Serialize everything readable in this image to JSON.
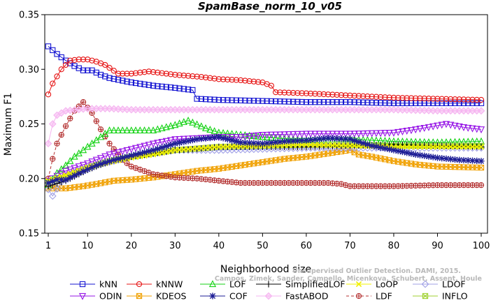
{
  "chart_data": {
    "type": "line",
    "title": "SpamBase_norm_10_v05",
    "xlabel": "Neighborhood size",
    "ylabel": "Maximum F1",
    "xlim": [
      1,
      100
    ],
    "ylim": [
      0.15,
      0.35
    ],
    "xticks": [
      1,
      10,
      20,
      30,
      40,
      50,
      60,
      70,
      80,
      90,
      100
    ],
    "yticks": [
      "0.15",
      "0.20",
      "0.25",
      "0.30",
      "0.35"
    ],
    "grid": false,
    "legend_position": "bottom",
    "watermark": [
      "Unsupervised Outlier Detection. DAMI, 2015.",
      "Campos, Zimek, Sander, Campello, Micenkova, Schubert, Assent, Houle"
    ],
    "series": [
      {
        "name": "kNN",
        "color": "#1414d2",
        "marker": "square",
        "dashed": false,
        "points": [
          [
            1,
            0.321
          ],
          [
            3,
            0.314
          ],
          [
            5,
            0.308
          ],
          [
            7,
            0.303
          ],
          [
            9,
            0.299
          ],
          [
            11,
            0.299
          ],
          [
            13,
            0.295
          ],
          [
            15,
            0.292
          ],
          [
            20,
            0.288
          ],
          [
            25,
            0.285
          ],
          [
            30,
            0.283
          ],
          [
            34,
            0.281
          ],
          [
            35,
            0.273
          ],
          [
            40,
            0.272
          ],
          [
            50,
            0.271
          ],
          [
            60,
            0.27
          ],
          [
            70,
            0.27
          ],
          [
            80,
            0.269
          ],
          [
            90,
            0.269
          ],
          [
            100,
            0.269
          ]
        ]
      },
      {
        "name": "kNNW",
        "color": "#e61414",
        "marker": "circle",
        "dashed": false,
        "points": [
          [
            1,
            0.277
          ],
          [
            2,
            0.287
          ],
          [
            4,
            0.3
          ],
          [
            6,
            0.308
          ],
          [
            8,
            0.309
          ],
          [
            10,
            0.309
          ],
          [
            12,
            0.307
          ],
          [
            14,
            0.304
          ],
          [
            17,
            0.296
          ],
          [
            20,
            0.296
          ],
          [
            24,
            0.298
          ],
          [
            30,
            0.295
          ],
          [
            36,
            0.293
          ],
          [
            40,
            0.291
          ],
          [
            45,
            0.29
          ],
          [
            50,
            0.288
          ],
          [
            52,
            0.285
          ],
          [
            53,
            0.279
          ],
          [
            60,
            0.278
          ],
          [
            70,
            0.276
          ],
          [
            80,
            0.274
          ],
          [
            90,
            0.273
          ],
          [
            100,
            0.272
          ]
        ]
      },
      {
        "name": "LOF",
        "color": "#14d214",
        "marker": "triangle-up",
        "dashed": false,
        "points": [
          [
            1,
            0.194
          ],
          [
            3,
            0.205
          ],
          [
            5,
            0.212
          ],
          [
            7,
            0.22
          ],
          [
            9,
            0.226
          ],
          [
            11,
            0.232
          ],
          [
            13,
            0.238
          ],
          [
            15,
            0.244
          ],
          [
            20,
            0.244
          ],
          [
            25,
            0.244
          ],
          [
            30,
            0.249
          ],
          [
            33,
            0.253
          ],
          [
            37,
            0.246
          ],
          [
            40,
            0.242
          ],
          [
            45,
            0.24
          ],
          [
            50,
            0.238
          ],
          [
            60,
            0.235
          ],
          [
            70,
            0.236
          ],
          [
            80,
            0.234
          ],
          [
            90,
            0.233
          ],
          [
            100,
            0.234
          ]
        ]
      },
      {
        "name": "SimplifiedLOF",
        "color": "#000000",
        "marker": "plus",
        "dashed": false,
        "points": [
          [
            1,
            0.193
          ],
          [
            5,
            0.198
          ],
          [
            10,
            0.208
          ],
          [
            15,
            0.216
          ],
          [
            20,
            0.22
          ],
          [
            25,
            0.223
          ],
          [
            30,
            0.226
          ],
          [
            35,
            0.227
          ],
          [
            40,
            0.229
          ],
          [
            50,
            0.229
          ],
          [
            60,
            0.229
          ],
          [
            70,
            0.23
          ],
          [
            80,
            0.231
          ],
          [
            90,
            0.23
          ],
          [
            100,
            0.229
          ]
        ]
      },
      {
        "name": "LoOP",
        "color": "#f0f000",
        "marker": "cross",
        "dashed": false,
        "points": [
          [
            1,
            0.198
          ],
          [
            5,
            0.203
          ],
          [
            10,
            0.21
          ],
          [
            15,
            0.215
          ],
          [
            20,
            0.219
          ],
          [
            25,
            0.222
          ],
          [
            30,
            0.226
          ],
          [
            40,
            0.229
          ],
          [
            50,
            0.23
          ],
          [
            60,
            0.231
          ],
          [
            70,
            0.23
          ],
          [
            80,
            0.229
          ],
          [
            90,
            0.229
          ],
          [
            100,
            0.229
          ]
        ]
      },
      {
        "name": "LDOF",
        "color": "#a0a0e6",
        "marker": "diamond",
        "dashed": false,
        "points": [
          [
            1,
            0.19
          ],
          [
            2,
            0.184
          ],
          [
            4,
            0.197
          ],
          [
            8,
            0.205
          ],
          [
            12,
            0.212
          ],
          [
            20,
            0.22
          ],
          [
            30,
            0.226
          ],
          [
            40,
            0.226
          ],
          [
            50,
            0.227
          ],
          [
            60,
            0.228
          ],
          [
            70,
            0.228
          ],
          [
            80,
            0.228
          ],
          [
            90,
            0.228
          ],
          [
            100,
            0.228
          ]
        ]
      },
      {
        "name": "ODIN",
        "color": "#9614e6",
        "marker": "triangle-down",
        "dashed": false,
        "points": [
          [
            1,
            0.198
          ],
          [
            5,
            0.207
          ],
          [
            10,
            0.214
          ],
          [
            15,
            0.222
          ],
          [
            20,
            0.227
          ],
          [
            25,
            0.232
          ],
          [
            30,
            0.236
          ],
          [
            35,
            0.237
          ],
          [
            40,
            0.238
          ],
          [
            45,
            0.238
          ],
          [
            50,
            0.24
          ],
          [
            60,
            0.241
          ],
          [
            70,
            0.241
          ],
          [
            80,
            0.242
          ],
          [
            85,
            0.245
          ],
          [
            92,
            0.25
          ],
          [
            96,
            0.247
          ],
          [
            100,
            0.245
          ]
        ]
      },
      {
        "name": "KDEOS",
        "color": "#f0a000",
        "marker": "square-x",
        "dashed": false,
        "points": [
          [
            1,
            0.191
          ],
          [
            5,
            0.191
          ],
          [
            9,
            0.193
          ],
          [
            12,
            0.195
          ],
          [
            16,
            0.198
          ],
          [
            20,
            0.199
          ],
          [
            25,
            0.201
          ],
          [
            30,
            0.204
          ],
          [
            35,
            0.207
          ],
          [
            40,
            0.209
          ],
          [
            45,
            0.212
          ],
          [
            50,
            0.215
          ],
          [
            55,
            0.218
          ],
          [
            60,
            0.22
          ],
          [
            65,
            0.223
          ],
          [
            70,
            0.226
          ],
          [
            72,
            0.222
          ],
          [
            75,
            0.22
          ],
          [
            80,
            0.216
          ],
          [
            85,
            0.213
          ],
          [
            90,
            0.211
          ],
          [
            100,
            0.21
          ]
        ]
      },
      {
        "name": "COF",
        "color": "#1e1e96",
        "marker": "asterisk",
        "dashed": false,
        "points": [
          [
            1,
            0.196
          ],
          [
            3,
            0.199
          ],
          [
            5,
            0.199
          ],
          [
            8,
            0.205
          ],
          [
            12,
            0.212
          ],
          [
            16,
            0.217
          ],
          [
            20,
            0.221
          ],
          [
            25,
            0.226
          ],
          [
            30,
            0.232
          ],
          [
            35,
            0.236
          ],
          [
            40,
            0.238
          ],
          [
            45,
            0.233
          ],
          [
            50,
            0.232
          ],
          [
            55,
            0.234
          ],
          [
            60,
            0.235
          ],
          [
            65,
            0.237
          ],
          [
            70,
            0.236
          ],
          [
            75,
            0.23
          ],
          [
            80,
            0.226
          ],
          [
            85,
            0.222
          ],
          [
            90,
            0.219
          ],
          [
            95,
            0.217
          ],
          [
            100,
            0.216
          ]
        ]
      },
      {
        "name": "FastABOD",
        "color": "#f5b4f0",
        "marker": "diamond-filled",
        "dashed": false,
        "points": [
          [
            1,
            0.232
          ],
          [
            2,
            0.25
          ],
          [
            3,
            0.258
          ],
          [
            5,
            0.262
          ],
          [
            10,
            0.264
          ],
          [
            15,
            0.264
          ],
          [
            20,
            0.263
          ],
          [
            30,
            0.263
          ],
          [
            40,
            0.263
          ],
          [
            50,
            0.263
          ],
          [
            60,
            0.263
          ],
          [
            70,
            0.263
          ],
          [
            80,
            0.263
          ],
          [
            90,
            0.262
          ],
          [
            100,
            0.262
          ]
        ]
      },
      {
        "name": "LDF",
        "color": "#b43232",
        "marker": "circle-plus",
        "dashed": true,
        "points": [
          [
            1,
            0.2
          ],
          [
            2,
            0.218
          ],
          [
            3,
            0.232
          ],
          [
            5,
            0.248
          ],
          [
            7,
            0.262
          ],
          [
            9,
            0.27
          ],
          [
            11,
            0.26
          ],
          [
            13,
            0.245
          ],
          [
            15,
            0.232
          ],
          [
            18,
            0.217
          ],
          [
            20,
            0.211
          ],
          [
            25,
            0.204
          ],
          [
            30,
            0.201
          ],
          [
            35,
            0.2
          ],
          [
            40,
            0.198
          ],
          [
            45,
            0.196
          ],
          [
            50,
            0.196
          ],
          [
            55,
            0.196
          ],
          [
            60,
            0.196
          ],
          [
            65,
            0.196
          ],
          [
            68,
            0.195
          ],
          [
            70,
            0.193
          ],
          [
            80,
            0.193
          ],
          [
            90,
            0.194
          ],
          [
            100,
            0.194
          ]
        ]
      },
      {
        "name": "INFLO",
        "color": "#a0d232",
        "marker": "square-x",
        "dashed": false,
        "points": [
          [
            1,
            0.197
          ],
          [
            5,
            0.202
          ],
          [
            10,
            0.21
          ],
          [
            15,
            0.216
          ],
          [
            20,
            0.22
          ],
          [
            25,
            0.223
          ],
          [
            30,
            0.226
          ],
          [
            40,
            0.229
          ],
          [
            50,
            0.23
          ],
          [
            60,
            0.231
          ],
          [
            70,
            0.231
          ],
          [
            80,
            0.23
          ],
          [
            90,
            0.23
          ],
          [
            100,
            0.23
          ]
        ]
      }
    ]
  }
}
